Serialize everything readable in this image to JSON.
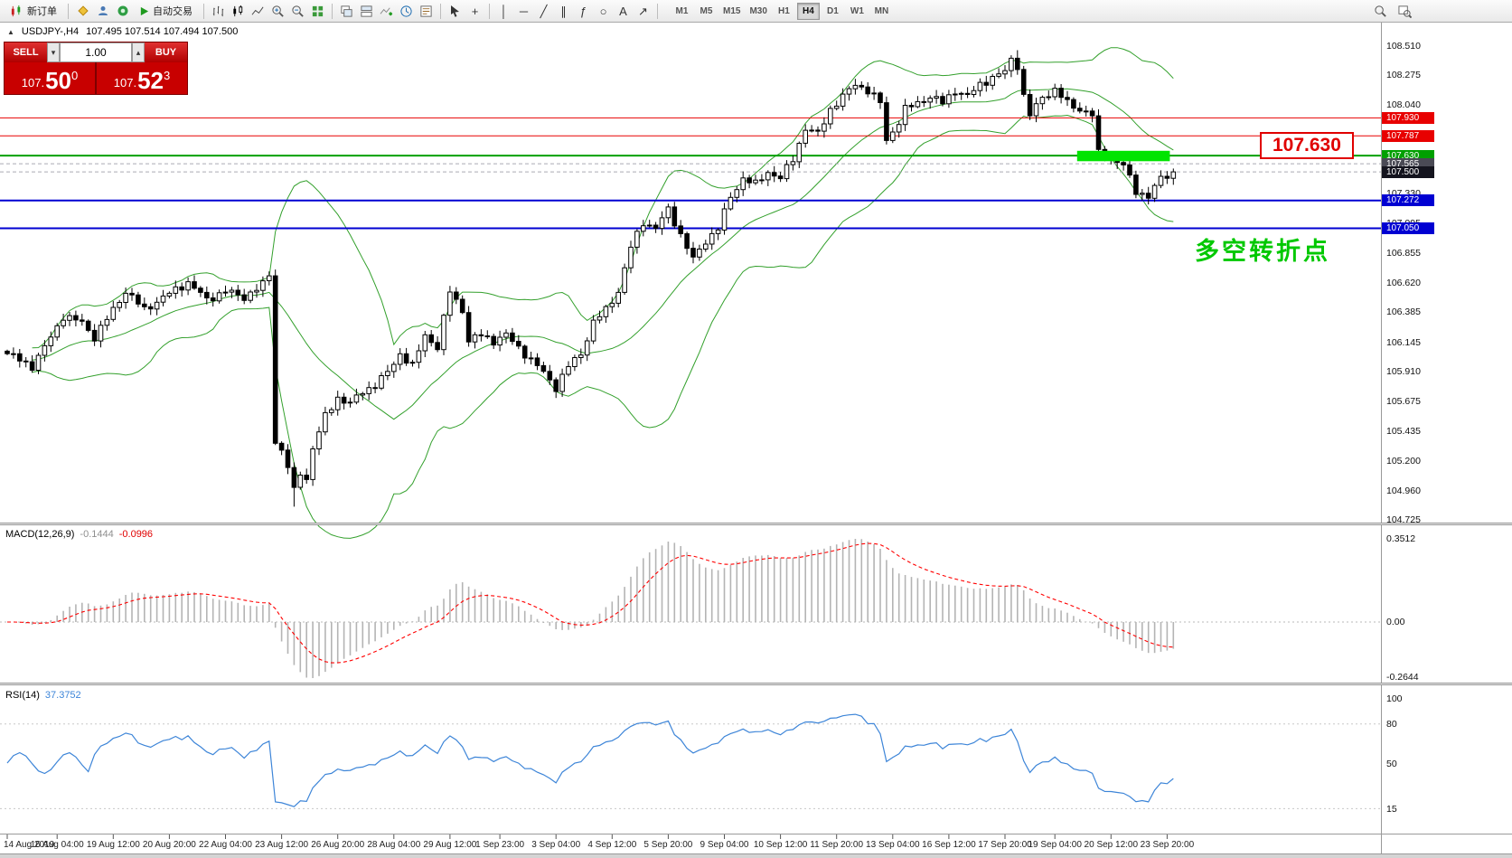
{
  "toolbar": {
    "new_order_label": "新订单",
    "autotrading_label": "自动交易",
    "timeframes": [
      "M1",
      "M5",
      "M15",
      "M30",
      "H1",
      "H4",
      "D1",
      "W1",
      "MN"
    ],
    "active_timeframe": "H4",
    "icons": {
      "crosshair": "+",
      "vline": "│",
      "hline": "─",
      "trendline": "╱",
      "channel": "∥",
      "fibo": "ƒ",
      "ellipse": "○",
      "text": "A",
      "arrow": "↗",
      "spin_up": "▴",
      "spin_down": "▾"
    }
  },
  "chart_header": {
    "marker": "▲",
    "symbol": "USDJPY-,H4",
    "ohlc": "107.495 107.514 107.494 107.500"
  },
  "trade_panel": {
    "sell_label": "SELL",
    "buy_label": "BUY",
    "volume": "1.00",
    "sell_price_prefix": "107.",
    "sell_price_big": "50",
    "sell_price_sup": "0",
    "buy_price_prefix": "107.",
    "buy_price_big": "52",
    "buy_price_sup": "3"
  },
  "annotations": {
    "price_box": "107.630",
    "note": "多空转折点"
  },
  "macd_header": {
    "name": "MACD(12,26,9)",
    "value_main": "-0.1444",
    "value_signal": "-0.0996"
  },
  "rsi_header": {
    "name": "RSI(14)",
    "value": "37.3752"
  },
  "chart_data": {
    "type": "candlestick",
    "symbol": "USDJPY",
    "timeframe": "H4",
    "bars": 188,
    "close_anchors": [
      [
        0,
        106.05
      ],
      [
        2,
        106.0
      ],
      [
        4,
        105.95
      ],
      [
        6,
        106.1
      ],
      [
        9,
        106.35
      ],
      [
        12,
        106.3
      ],
      [
        14,
        106.18
      ],
      [
        17,
        106.4
      ],
      [
        19,
        106.55
      ],
      [
        22,
        106.4
      ],
      [
        25,
        106.5
      ],
      [
        29,
        106.62
      ],
      [
        32,
        106.48
      ],
      [
        35,
        106.55
      ],
      [
        38,
        106.5
      ],
      [
        41,
        106.6
      ],
      [
        42,
        106.68
      ],
      [
        43,
        105.35
      ],
      [
        44,
        105.28
      ],
      [
        45,
        105.15
      ],
      [
        46,
        104.95
      ],
      [
        47,
        105.1
      ],
      [
        48,
        105.05
      ],
      [
        49,
        105.3
      ],
      [
        51,
        105.55
      ],
      [
        53,
        105.7
      ],
      [
        55,
        105.65
      ],
      [
        57,
        105.75
      ],
      [
        59,
        105.8
      ],
      [
        61,
        105.9
      ],
      [
        63,
        106.05
      ],
      [
        65,
        105.95
      ],
      [
        67,
        106.2
      ],
      [
        69,
        106.1
      ],
      [
        71,
        106.55
      ],
      [
        73,
        106.4
      ],
      [
        74,
        106.15
      ],
      [
        76,
        106.2
      ],
      [
        78,
        106.15
      ],
      [
        80,
        106.2
      ],
      [
        82,
        106.1
      ],
      [
        84,
        106.0
      ],
      [
        86,
        105.9
      ],
      [
        88,
        105.78
      ],
      [
        90,
        105.95
      ],
      [
        92,
        106.05
      ],
      [
        94,
        106.3
      ],
      [
        96,
        106.4
      ],
      [
        98,
        106.55
      ],
      [
        100,
        106.9
      ],
      [
        102,
        107.1
      ],
      [
        104,
        107.05
      ],
      [
        106,
        107.2
      ],
      [
        108,
        107.0
      ],
      [
        110,
        106.8
      ],
      [
        112,
        106.95
      ],
      [
        114,
        107.05
      ],
      [
        116,
        107.3
      ],
      [
        118,
        107.45
      ],
      [
        120,
        107.4
      ],
      [
        122,
        107.5
      ],
      [
        124,
        107.45
      ],
      [
        126,
        107.6
      ],
      [
        128,
        107.85
      ],
      [
        130,
        107.8
      ],
      [
        132,
        108.0
      ],
      [
        134,
        108.1
      ],
      [
        136,
        108.2
      ],
      [
        138,
        108.15
      ],
      [
        140,
        108.05
      ],
      [
        141,
        107.75
      ],
      [
        143,
        107.9
      ],
      [
        144,
        108.0
      ],
      [
        146,
        108.05
      ],
      [
        148,
        108.1
      ],
      [
        150,
        108.05
      ],
      [
        152,
        108.15
      ],
      [
        154,
        108.1
      ],
      [
        156,
        108.2
      ],
      [
        158,
        108.25
      ],
      [
        160,
        108.3
      ],
      [
        161,
        108.4
      ],
      [
        162,
        108.35
      ],
      [
        163,
        108.1
      ],
      [
        164,
        107.95
      ],
      [
        166,
        108.1
      ],
      [
        168,
        108.15
      ],
      [
        170,
        108.05
      ],
      [
        172,
        108.0
      ],
      [
        174,
        107.95
      ],
      [
        175,
        107.65
      ],
      [
        177,
        107.6
      ],
      [
        179,
        107.55
      ],
      [
        181,
        107.35
      ],
      [
        183,
        107.3
      ],
      [
        185,
        107.45
      ],
      [
        187,
        107.5
      ]
    ],
    "extremes": {
      "low_bar": 46,
      "low_price": 104.83,
      "high_bar": 162,
      "high_price": 108.47
    },
    "indicators": {
      "bollinger": {
        "period": 20,
        "deviation": 2,
        "color": "#33a02c"
      },
      "macd": {
        "fast": 12,
        "slow": 26,
        "signal": 9,
        "histogram_color": "#b4b4b4",
        "signal_color": "#ff0000",
        "scale_labels": {
          "max": "0.3512",
          "zero": "0.00",
          "min": "-0.2644"
        }
      },
      "rsi": {
        "period": 14,
        "color": "#3d85d8",
        "scale_labels": [
          {
            "value": 100,
            "label": "100"
          },
          {
            "value": 80,
            "label": "80"
          },
          {
            "value": 50,
            "label": "50"
          },
          {
            "value": 15,
            "label": "15"
          }
        ],
        "level_lines": [
          80,
          15
        ]
      }
    },
    "hlines": [
      {
        "price": 107.93,
        "label": "107.930",
        "color": "#e80000",
        "width": 1
      },
      {
        "price": 107.787,
        "label": "107.787",
        "color": "#e80000",
        "width": 1
      },
      {
        "price": 107.63,
        "label": "107.630",
        "color": "#00a000",
        "width": 2
      },
      {
        "price": 107.272,
        "label": "107.272",
        "color": "#0000d2",
        "width": 2
      },
      {
        "price": 107.05,
        "label": "107.050",
        "color": "#0000d2",
        "width": 2
      }
    ],
    "price_tags": [
      {
        "price": 107.565,
        "label": "107.565",
        "bg": "#4a4a55"
      },
      {
        "price": 107.5,
        "label": "107.500",
        "bg": "#14141e"
      }
    ],
    "highlight_rect": {
      "bar_start": 172,
      "bar_end": 186,
      "price_top": 107.668,
      "price_bottom": 107.585,
      "color": "#00e400"
    },
    "y_axis_labels": [
      "108.510",
      "108.275",
      "108.040",
      "107.330",
      "107.095",
      "106.855",
      "106.620",
      "106.385",
      "106.145",
      "105.910",
      "105.675",
      "105.435",
      "105.200",
      "104.960",
      "104.725"
    ],
    "x_axis_labels": [
      [
        0,
        "14 Aug 2019"
      ],
      [
        8,
        "16 Aug 04:00"
      ],
      [
        17,
        "19 Aug 12:00"
      ],
      [
        26,
        "20 Aug 20:00"
      ],
      [
        35,
        "22 Aug 04:00"
      ],
      [
        44,
        "23 Aug 12:00"
      ],
      [
        53,
        "26 Aug 20:00"
      ],
      [
        62,
        "28 Aug 04:00"
      ],
      [
        71,
        "29 Aug 12:00"
      ],
      [
        79,
        "1 Sep 23:00"
      ],
      [
        88,
        "3 Sep 04:00"
      ],
      [
        97,
        "4 Sep 12:00"
      ],
      [
        106,
        "5 Sep 20:00"
      ],
      [
        115,
        "9 Sep 04:00"
      ],
      [
        124,
        "10 Sep 12:00"
      ],
      [
        133,
        "11 Sep 20:00"
      ],
      [
        142,
        "13 Sep 04:00"
      ],
      [
        151,
        "16 Sep 12:00"
      ],
      [
        160,
        "17 Sep 20:00"
      ],
      [
        168,
        "19 Sep 04:00"
      ],
      [
        177,
        "20 Sep 12:00"
      ],
      [
        186,
        "23 Sep 20:00"
      ]
    ]
  }
}
